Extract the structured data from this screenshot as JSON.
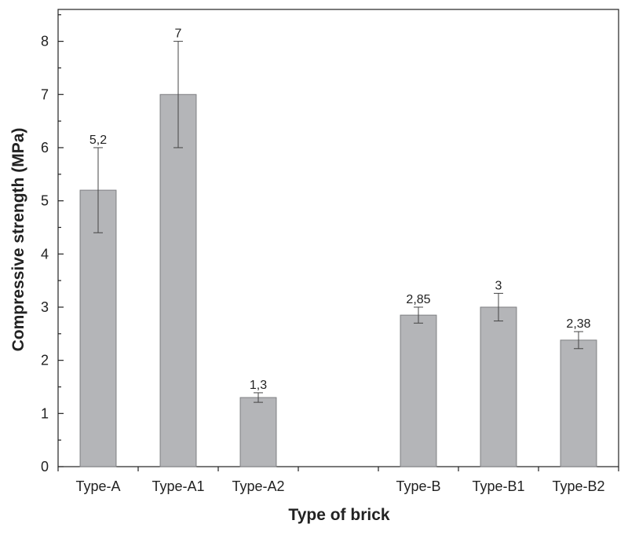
{
  "chart_data": {
    "type": "bar",
    "xlabel": "Type of brick",
    "ylabel": "Compressive strength (MPa)",
    "ylim": [
      0,
      8.6
    ],
    "yticks": [
      0,
      1,
      2,
      3,
      4,
      5,
      6,
      7,
      8
    ],
    "grid": false,
    "categories": [
      "Type-A",
      "Type-A1",
      "Type-A2",
      "",
      "Type-B",
      "Type-B1",
      "Type-B2"
    ],
    "values": [
      5.2,
      7,
      1.3,
      null,
      2.85,
      3,
      2.38
    ],
    "error": [
      0.8,
      1.0,
      0.09,
      null,
      0.15,
      0.26,
      0.16
    ],
    "data_labels": [
      "5,2",
      "7",
      "1,3",
      "",
      "2,85",
      "3",
      "2,38"
    ],
    "colors": {
      "bar_fill": "#b4b5b8",
      "bar_stroke": "#7e7f82",
      "axis": "#222222"
    }
  }
}
